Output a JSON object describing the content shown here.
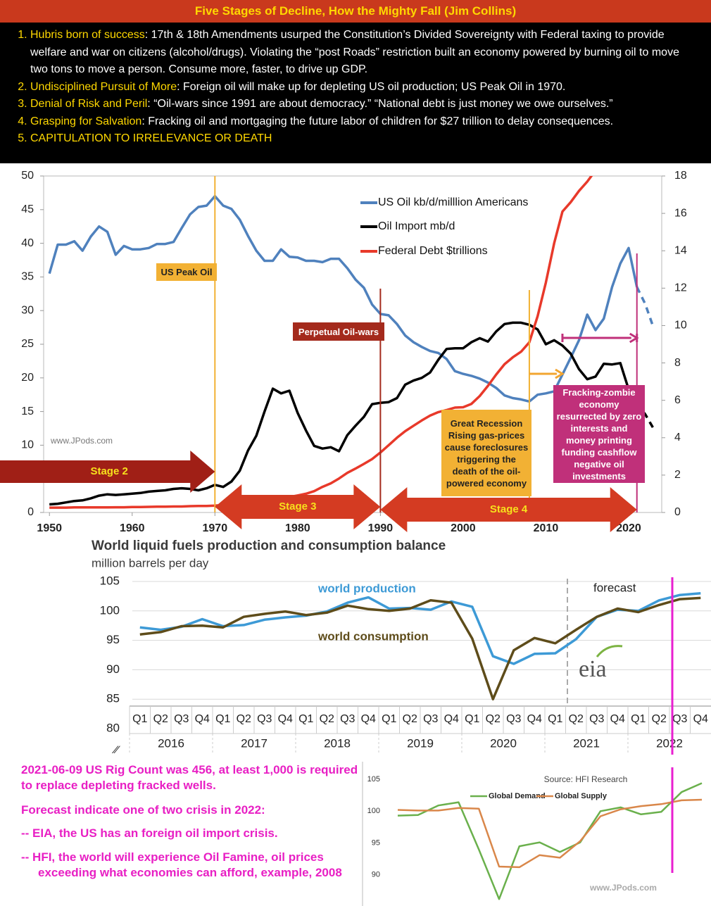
{
  "header": {
    "title": "Five Stages of Decline, How the Mighty Fall (Jim Collins)",
    "items": [
      {
        "lead": "Hubris born of success",
        "text": ": 17th & 18th Amendments usurped the Constitution’s Divided Sovereignty with Federal taxing to provide welfare and war on citizens (alcohol/drugs). Violating the “post Roads” restriction built an economy powered by burning oil to move two tons to move a person. Consume more, faster, to drive up GDP."
      },
      {
        "lead": "Undisciplined Pursuit of More",
        "text": ": Foreign oil will make up for depleting US oil production; US Peak Oil in 1970."
      },
      {
        "lead": "Denial of Risk and Peril",
        "text": ": “Oil-wars since 1991 are about democracy.” “National debt is just money we owe ourselves.”"
      },
      {
        "lead": "Grasping for Salvation",
        "text": ": Fracking oil and mortgaging the future labor of children for $27 trillion to delay consequences."
      },
      {
        "lead": "CAPITULATION TO IRRELEVANCE OR DEATH"
      }
    ]
  },
  "chart_data": [
    {
      "type": "line",
      "x": [
        1950,
        1951,
        1952,
        1953,
        1954,
        1955,
        1956,
        1957,
        1958,
        1959,
        1960,
        1961,
        1962,
        1963,
        1964,
        1965,
        1966,
        1967,
        1968,
        1969,
        1970,
        1971,
        1972,
        1973,
        1974,
        1975,
        1976,
        1977,
        1978,
        1979,
        1980,
        1981,
        1982,
        1983,
        1984,
        1985,
        1986,
        1987,
        1988,
        1989,
        1990,
        1991,
        1992,
        1993,
        1994,
        1995,
        1996,
        1997,
        1998,
        1999,
        2000,
        2001,
        2002,
        2003,
        2004,
        2005,
        2006,
        2007,
        2008,
        2009,
        2010,
        2011,
        2012,
        2013,
        2014,
        2015,
        2016,
        2017,
        2018,
        2019,
        2020,
        2021
      ],
      "xlim": [
        1949.3,
        2024
      ],
      "xticks": [
        1950,
        1960,
        1970,
        1980,
        1990,
        2000,
        2010,
        2020
      ],
      "ylim": [
        0,
        50
      ],
      "yticks": [
        0,
        5,
        10,
        15,
        20,
        25,
        30,
        35,
        40,
        45,
        50
      ],
      "y2lim": [
        0,
        18
      ],
      "y2ticks": [
        0,
        2,
        4,
        6,
        8,
        10,
        12,
        14,
        16,
        18
      ],
      "series": [
        {
          "name": "US Oil kb/d/milllion Americans",
          "color": "#4f81bd",
          "values": [
            35.5,
            39.8,
            39.8,
            40.3,
            38.9,
            41.0,
            42.5,
            41.7,
            38.3,
            39.6,
            39.1,
            39.1,
            39.3,
            39.9,
            39.9,
            40.2,
            42.3,
            44.3,
            45.4,
            45.6,
            47.0,
            45.6,
            45.1,
            43.5,
            41.1,
            38.9,
            37.4,
            37.4,
            39.1,
            38.0,
            37.9,
            37.4,
            37.4,
            37.2,
            37.7,
            37.7,
            36.3,
            34.6,
            33.4,
            30.9,
            29.5,
            29.3,
            28.0,
            26.3,
            25.3,
            24.6,
            24.0,
            23.7,
            22.8,
            21.0,
            20.6,
            20.3,
            19.9,
            19.3,
            18.5,
            17.4,
            17.0,
            16.8,
            16.5,
            17.5,
            17.7,
            18.0,
            20.5,
            23.0,
            25.6,
            29.4,
            27.1,
            28.8,
            33.5,
            37.0,
            39.3,
            33.5
          ],
          "forecast": {
            "x": [
              2021,
              2022,
              2023
            ],
            "values": [
              33.5,
              31.0,
              27.5
            ]
          }
        },
        {
          "name": "Oil Import mb/d",
          "color": "#000000",
          "values": [
            1.2,
            1.3,
            1.5,
            1.7,
            1.8,
            2.1,
            2.5,
            2.7,
            2.6,
            2.7,
            2.8,
            2.9,
            3.1,
            3.2,
            3.3,
            3.5,
            3.6,
            3.5,
            3.3,
            3.6,
            4.1,
            3.8,
            4.6,
            6.2,
            9.2,
            11.4,
            15.0,
            18.4,
            17.7,
            18.1,
            14.8,
            12.2,
            9.9,
            9.5,
            9.7,
            9.1,
            11.5,
            12.9,
            14.2,
            16.1,
            16.3,
            16.4,
            17.0,
            19.0,
            19.6,
            20.0,
            20.8,
            22.7,
            24.3,
            24.4,
            24.4,
            25.3,
            25.9,
            25.4,
            26.9,
            28.0,
            28.2,
            28.2,
            27.9,
            27.2,
            25.0,
            25.6,
            24.8,
            23.6,
            21.3,
            19.8,
            20.2,
            22.1,
            22.0,
            22.2,
            18.3,
            16.2
          ],
          "forecast": {
            "x": [
              2021,
              2022,
              2023
            ],
            "values": [
              16.2,
              14.6,
              12.5
            ]
          }
        },
        {
          "name": "Federal Debt $trillions",
          "color": "#e8392a",
          "axis": "y2",
          "values": [
            0.26,
            0.26,
            0.26,
            0.27,
            0.27,
            0.27,
            0.27,
            0.27,
            0.28,
            0.28,
            0.29,
            0.29,
            0.3,
            0.31,
            0.31,
            0.32,
            0.32,
            0.34,
            0.35,
            0.35,
            0.37,
            0.4,
            0.43,
            0.46,
            0.48,
            0.54,
            0.62,
            0.7,
            0.77,
            0.83,
            0.91,
            1.0,
            1.14,
            1.37,
            1.56,
            1.82,
            2.12,
            2.35,
            2.6,
            2.86,
            3.21,
            3.6,
            4.0,
            4.35,
            4.64,
            4.92,
            5.18,
            5.37,
            5.48,
            5.61,
            5.63,
            5.81,
            6.23,
            6.78,
            7.38,
            7.93,
            8.3,
            8.6,
            9.1,
            10.5,
            12.3,
            14.4,
            16.1,
            16.6,
            17.2,
            17.7,
            18.3,
            null,
            null,
            null,
            null,
            null
          ]
        }
      ],
      "markers": [
        {
          "x": 1970,
          "color": "#f2b134"
        },
        {
          "x": 1990,
          "color": "#a42a1c"
        },
        {
          "x": 2008,
          "color": "#f2b134"
        },
        {
          "x": 2021,
          "color": "#c0307a"
        }
      ],
      "spans": [
        {
          "from": 2008,
          "to": 2012,
          "color": "#f2a530"
        },
        {
          "from": 2012,
          "to": 2021,
          "color": "#c0307a"
        }
      ],
      "stages": [
        {
          "label": "Stage 2",
          "to": 1970,
          "color": "#a01f16"
        },
        {
          "label": "Stage 3",
          "from": 1970,
          "to": 1990,
          "color": "#d43b22"
        },
        {
          "label": "Stage 4",
          "from": 1990,
          "to": 2021,
          "color": "#d43b22"
        }
      ],
      "annotations": [
        {
          "text": "US Peak Oil",
          "color": "#f2b134",
          "text_color": "#222222"
        },
        {
          "text": "Perpetual Oil-wars",
          "color": "#a42a1c",
          "text_color": "#ffffff"
        },
        {
          "text": "Great Recession Rising gas-prices cause foreclosures triggering the death of the oil-powered economy",
          "color": "#f2b134",
          "text_color": "#222222"
        },
        {
          "text": "Fracking-zombie economy resurrected by zero interests and money printing funding cashflow negative oil investments",
          "color": "#c0307a",
          "text_color": "#ffffff"
        }
      ],
      "watermark": "www.JPods.com"
    },
    {
      "type": "line",
      "title": "World liquid fuels production and consumption balance",
      "subtitle": "million barrels per day",
      "categories": [
        "Q1",
        "Q2",
        "Q3",
        "Q4",
        "Q1",
        "Q2",
        "Q3",
        "Q4",
        "Q1",
        "Q2",
        "Q3",
        "Q4",
        "Q1",
        "Q2",
        "Q3",
        "Q4",
        "Q1",
        "Q2",
        "Q3",
        "Q4",
        "Q1",
        "Q2",
        "Q3",
        "Q4",
        "Q1",
        "Q2",
        "Q3",
        "Q4"
      ],
      "years": [
        "2016",
        "2017",
        "2018",
        "2019",
        "2020",
        "2021",
        "2022"
      ],
      "ylim": [
        80,
        105
      ],
      "yticks": [
        80,
        85,
        90,
        95,
        100,
        105
      ],
      "grid": true,
      "series": [
        {
          "name": "world production",
          "color": "#3d9ad6",
          "values": [
            97.2,
            96.8,
            97.3,
            98.6,
            97.4,
            97.6,
            98.5,
            98.9,
            99.2,
            99.9,
            101.4,
            102.3,
            100.4,
            100.5,
            100.2,
            101.6,
            100.7,
            92.3,
            91.0,
            92.7,
            92.8,
            95.2,
            99.0,
            100.2,
            100.0,
            101.8,
            102.7,
            103.0
          ]
        },
        {
          "name": "world consumption",
          "color": "#5e4c1a",
          "values": [
            96.0,
            96.4,
            97.4,
            97.5,
            97.2,
            99.0,
            99.5,
            99.9,
            99.3,
            99.7,
            100.9,
            100.3,
            100.0,
            100.4,
            101.8,
            101.4,
            95.3,
            85.0,
            93.3,
            95.4,
            94.5,
            96.8,
            99.0,
            100.4,
            99.8,
            101.0,
            102.0,
            102.2
          ]
        }
      ],
      "forecast_label": "forecast",
      "logo": "eia"
    },
    {
      "type": "line",
      "source": "Source: HFI Research",
      "categories": [
        null,
        null,
        null,
        null,
        null,
        null,
        null,
        null,
        null,
        null,
        null,
        null,
        null,
        null,
        null,
        null
      ],
      "ylim": [
        86,
        106
      ],
      "yticks": [
        90,
        95,
        100,
        105
      ],
      "legend": "top",
      "series": [
        {
          "name": "Global Demand",
          "color": "#6ab04c",
          "values": [
            99.3,
            99.4,
            100.9,
            101.4,
            94.0,
            86.2,
            94.5,
            95.1,
            93.6,
            95.1,
            100.0,
            100.6,
            99.5,
            99.9,
            103.0,
            104.4
          ]
        },
        {
          "name": "Global Supply",
          "color": "#d9874a",
          "values": [
            100.2,
            100.1,
            100.1,
            100.5,
            100.4,
            91.3,
            91.2,
            93.1,
            92.7,
            95.3,
            99.2,
            100.3,
            100.8,
            101.1,
            101.7,
            101.8
          ]
        }
      ],
      "watermark": "www.JPods.com"
    }
  ],
  "notes": [
    "2021-06-09 US Rig Count was 456, at least 1,000 is required to replace depleting fracked wells.",
    "Forecast indicate one of two crisis in 2022:",
    "-- EIA, the US has an foreign oil import crisis.",
    "-- HFI, the world will experience Oil Famine, oil prices exceeding what economies can afford, example, 2008"
  ]
}
